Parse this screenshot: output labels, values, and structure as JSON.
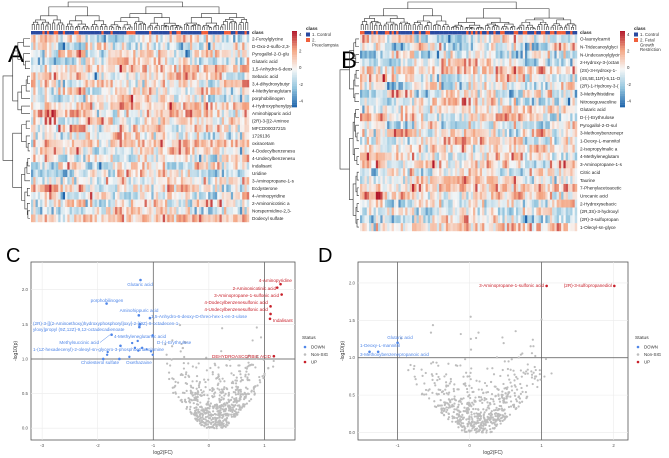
{
  "panels": {
    "a": "A",
    "b": "B",
    "c": "C",
    "d": "D"
  },
  "chart_data": [
    {
      "type": "heatmap",
      "panel": "A",
      "class_legend_title": "class",
      "classes": [
        "1. Control",
        "2. Preeclampsia"
      ],
      "class_colors": [
        "#2a4aa0",
        "#f0603c"
      ],
      "color_scale": {
        "min": -4,
        "max": 4,
        "ticks": [
          "4",
          "2",
          "0",
          "-2",
          "-4"
        ],
        "low": "#2166ac",
        "mid": "#f7f7f7",
        "high": "#b2182b"
      },
      "rows": [
        "2-Furoylglycine",
        "D-Oxo-2-sulfo-2,3-",
        "Pyrogallol-2-O-glu",
        "Glutaric acid",
        "1,5-Anhydro-6-deox",
        "Sebacic acid",
        "3,4-dihydroxybutyr",
        "4-Methyleneglutam",
        "porphobilinogen",
        "4-Hydroxyphenylpyr",
        "Aminohippuric acid",
        "(2R)-3-[(2-Aminoe",
        "MFCD00037215",
        "1726136",
        "oxiracetam",
        "4-Dodecylbenzenesu",
        "4-Undecylbenzenesu",
        "Indalisant",
        "Uridine",
        "3-Aminopropane-1-s",
        "Ecdysterone",
        "4-Aminopyridine",
        "2-Aminonicotinic a",
        "Norspermidine-2,3-",
        "Dodecyl sulfate"
      ],
      "n_columns": 96
    },
    {
      "type": "heatmap",
      "panel": "B",
      "class_legend_title": "class",
      "classes": [
        "1. Control",
        "2. Fetal Growth Restriction"
      ],
      "class_colors": [
        "#2a4aa0",
        "#f0603c"
      ],
      "color_scale": {
        "min": -4,
        "max": 4,
        "ticks": [
          "4",
          "2",
          "0",
          "-2",
          "-4"
        ],
        "low": "#2166ac",
        "mid": "#f7f7f7",
        "high": "#b2182b"
      },
      "rows": [
        "O-lauroylcarnit",
        "N-Tridecanoylglyci",
        "N-Undecanoylglycin",
        "2-Hydroxy-3-(octan",
        "(2S)-3-Hydroxy-1-",
        "(4S,5E,11R)-5,11-O",
        "(2R)-1-Hydroxy-3-(",
        "3-Methylhistidine",
        "Nitrosoguvacoline",
        "Glutaric acid",
        "D-(-)-Erythrulose",
        "Pyrogallol-2-O-sul",
        "3-Methoxybenzenepr",
        "1-Deoxy-L-mannitol",
        "2-Isopropylmalic a",
        "4-Methyleneglutam",
        "3-Aminopropane-1-s",
        "Citric acid",
        "Taurine",
        "7-Phenylacetoacetic",
        "Urocanic acid",
        "2-Hydroxysebacic",
        "(2R,3S)-3-hydroxyl",
        "(2R)-3-sulfopropan",
        "1-Oleoyl-sn-glyce"
      ],
      "n_columns": 96
    },
    {
      "type": "scatter",
      "panel": "C",
      "xlabel": "log2(FC)",
      "ylabel": "-log10(p)",
      "xlim": [
        -3.2,
        1.55
      ],
      "ylim": [
        -0.17,
        2.4
      ],
      "xticks": [
        -3,
        -2,
        -1,
        0,
        1
      ],
      "yticks": [
        0.0,
        0.5,
        1.0,
        1.5,
        2.0
      ],
      "thresholds": {
        "x": [
          -1,
          1
        ],
        "y": 1.0
      },
      "legend": {
        "title": "Status",
        "items": [
          "DOWN",
          "Non-SIG",
          "UP"
        ],
        "colors": [
          "#4f86e8",
          "#bdbdbd",
          "#c8202a"
        ],
        "placement": "right"
      },
      "labeled_points": [
        {
          "label": "4-Aminopyridine",
          "x": 1.29,
          "y": 2.08,
          "status": "UP"
        },
        {
          "label": "2-Aminonicotinic acid",
          "x": 1.23,
          "y": 2.03,
          "status": "UP"
        },
        {
          "label": "3-Aminopropane-1-sulfonic acid",
          "x": 1.31,
          "y": 1.93,
          "status": "UP"
        },
        {
          "label": "4-Dodecylbenzenesulfonic acid",
          "x": 1.11,
          "y": 1.76,
          "status": "UP"
        },
        {
          "label": "4-Undecylbenzenesulfonic acid",
          "x": 1.11,
          "y": 1.65,
          "status": "UP"
        },
        {
          "label": "Indalisant",
          "x": 1.1,
          "y": 1.58,
          "status": "UP"
        },
        {
          "label": "DEHYDROASCORBIC ACID",
          "x": 1.17,
          "y": 1.04,
          "status": "UP"
        },
        {
          "label": "Glutaric acid",
          "x": -1.23,
          "y": 2.14,
          "status": "DOWN"
        },
        {
          "label": "porphobilinogen",
          "x": -1.84,
          "y": 1.8,
          "status": "DOWN"
        },
        {
          "label": "Aminohippuric acid",
          "x": -1.26,
          "y": 1.63,
          "status": "DOWN"
        },
        {
          "label": "1,5-Anhydro-6-deoxy-D-threo-hex-1-en-3-ulose",
          "x": -1.06,
          "y": 1.59,
          "status": "DOWN"
        },
        {
          "label": "(2R)-3-[[(2-Aminoethoxy)hydroxyphosphoryl]oxy]-2-[(9Z)-9-octadecen-1-yloxy]propyl (9Z,12Z)-9,12-octadecadienoate",
          "x": -1.24,
          "y": 1.5,
          "status": "DOWN"
        },
        {
          "label": "4-Methyleneglutamic acid",
          "x": -1.25,
          "y": 1.46,
          "status": "DOWN"
        },
        {
          "label": "Methylsuccinic acid",
          "x": -1.75,
          "y": 1.35,
          "status": "DOWN"
        },
        {
          "label": "D-(-)-Erythrulose",
          "x": -1.01,
          "y": 1.34,
          "status": "DOWN"
        },
        {
          "label": "1-(1Z-hexadecenyl)-2-oleoyl-sn-glycero-3-phosphoethanolamine",
          "x": -1.59,
          "y": 1.19,
          "status": "DOWN"
        },
        {
          "label": "Cholesterol sulfate",
          "x": -1.9,
          "y": 1.0,
          "status": "DOWN"
        },
        {
          "label": "Oxethazaine",
          "x": -1.61,
          "y": 1.0,
          "status": "DOWN"
        }
      ],
      "unlabeled_down_points": [
        [
          -1.82,
          1.1
        ],
        [
          -1.83,
          1.06
        ],
        [
          -1.43,
          1.03
        ],
        [
          -1.38,
          1.23
        ],
        [
          -1.33,
          1.16
        ],
        [
          -1.27,
          1.12
        ],
        [
          -1.2,
          1.16
        ],
        [
          -1.12,
          1.14
        ],
        [
          -1.04,
          1.11
        ],
        [
          -1.01,
          1.06
        ],
        [
          -1.28,
          1.26
        ]
      ],
      "n_nonsig_points": 620
    },
    {
      "type": "scatter",
      "panel": "D",
      "xlabel": "log2(FC)",
      "ylabel": "-log10(p)",
      "xlim": [
        -1.55,
        2.2
      ],
      "ylim": [
        -0.1,
        2.28
      ],
      "xticks": [
        -1,
        0,
        1,
        2
      ],
      "yticks": [
        0.0,
        0.5,
        1.0,
        1.5,
        2.0
      ],
      "thresholds": {
        "x": [
          -1,
          1
        ],
        "y": 1.0
      },
      "legend": {
        "title": "Status",
        "items": [
          "DOWN",
          "Non-SIG",
          "UP"
        ],
        "colors": [
          "#4f86e8",
          "#bdbdbd",
          "#c8202a"
        ],
        "placement": "right"
      },
      "labeled_points": [
        {
          "label": "3-Aminopropane-1-sulfonic acid",
          "x": 1.07,
          "y": 1.96,
          "status": "UP"
        },
        {
          "label": "(2R)-3-sulfopropanediol",
          "x": 2.01,
          "y": 1.96,
          "status": "UP"
        },
        {
          "label": "Glutaric acid",
          "x": -1.0,
          "y": 1.2,
          "status": "DOWN"
        },
        {
          "label": "1-Deoxy-L-mannitol",
          "x": -1.39,
          "y": 1.08,
          "status": "DOWN"
        },
        {
          "label": "3-Methoxybenzenepropanoic acid",
          "x": -1.27,
          "y": 1.08,
          "status": "DOWN"
        }
      ],
      "unlabeled_down_points": [],
      "n_nonsig_points": 620
    }
  ]
}
